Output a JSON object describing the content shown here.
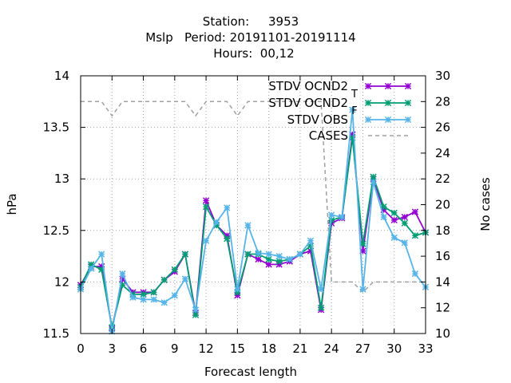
{
  "chart_data": {
    "type": "line",
    "title_lines": [
      "Station:     3953",
      "Mslp   Period: 20191101-20191114",
      "Hours:  00,12"
    ],
    "xlabel": "Forecast length",
    "ylabel": "hPa",
    "y2label": "No cases",
    "xlim": [
      0,
      33
    ],
    "ylim": [
      11.5,
      14
    ],
    "y2lim": [
      10,
      30
    ],
    "x_ticks": [
      0,
      3,
      6,
      9,
      12,
      15,
      18,
      21,
      24,
      27,
      30,
      33
    ],
    "y_ticks": [
      "11.5",
      "12",
      "12.5",
      "13",
      "13.5",
      "14"
    ],
    "y2_ticks": [
      "10",
      "12",
      "14",
      "16",
      "18",
      "20",
      "22",
      "24",
      "26",
      "28",
      "30"
    ],
    "legend_position": "top-right",
    "x": [
      0,
      1,
      2,
      3,
      4,
      5,
      6,
      7,
      8,
      9,
      10,
      11,
      12,
      13,
      14,
      15,
      16,
      17,
      18,
      19,
      20,
      21,
      22,
      23,
      24,
      25,
      26,
      27,
      28,
      29,
      30,
      31,
      32,
      33
    ],
    "series": [
      {
        "name": "STDV OCND2",
        "legend_sub": "T",
        "color": "#9400d3",
        "marker": "x-star",
        "axis": "y",
        "values": [
          11.97,
          12.15,
          12.15,
          11.55,
          12.03,
          11.9,
          11.9,
          11.9,
          12.02,
          12.1,
          12.27,
          11.7,
          12.79,
          12.55,
          12.45,
          11.87,
          12.27,
          12.22,
          12.17,
          12.17,
          12.2,
          12.27,
          12.3,
          11.73,
          12.57,
          12.62,
          13.43,
          12.3,
          13.0,
          12.7,
          12.6,
          12.63,
          12.68,
          12.48
        ]
      },
      {
        "name": "STDV OCND2",
        "legend_sub": "F",
        "color": "#009e73",
        "marker": "x-star",
        "axis": "y",
        "values": [
          11.95,
          12.17,
          12.12,
          11.56,
          11.97,
          11.88,
          11.88,
          11.9,
          12.02,
          12.12,
          12.27,
          11.68,
          12.73,
          12.55,
          12.42,
          11.9,
          12.27,
          12.27,
          12.22,
          12.2,
          12.22,
          12.27,
          12.35,
          11.75,
          12.6,
          12.63,
          13.4,
          12.37,
          13.02,
          12.73,
          12.67,
          12.57,
          12.45,
          12.48
        ]
      },
      {
        "name": "STDV OBS",
        "legend_sub": "",
        "color": "#56b4e9",
        "marker": "x-star",
        "axis": "y",
        "values": [
          11.93,
          12.13,
          12.27,
          11.52,
          12.08,
          11.85,
          11.83,
          11.83,
          11.8,
          11.87,
          12.03,
          11.73,
          12.4,
          12.58,
          12.72,
          11.93,
          12.55,
          12.28,
          12.27,
          12.25,
          12.22,
          12.27,
          12.4,
          11.93,
          12.65,
          12.63,
          13.67,
          11.93,
          12.97,
          12.63,
          12.43,
          12.38,
          12.08,
          11.95
        ]
      },
      {
        "name": "CASES",
        "legend_sub": "",
        "color": "#a0a0a0",
        "dashed": true,
        "axis": "y2",
        "values": [
          28,
          28,
          28,
          26.9,
          28,
          28,
          28,
          28,
          28,
          28,
          28,
          26.9,
          28,
          28,
          28,
          26.9,
          28,
          28,
          28,
          28,
          28,
          28,
          28,
          28,
          14,
          14,
          14,
          13.2,
          14,
          14,
          14,
          14,
          14,
          14
        ]
      }
    ]
  }
}
